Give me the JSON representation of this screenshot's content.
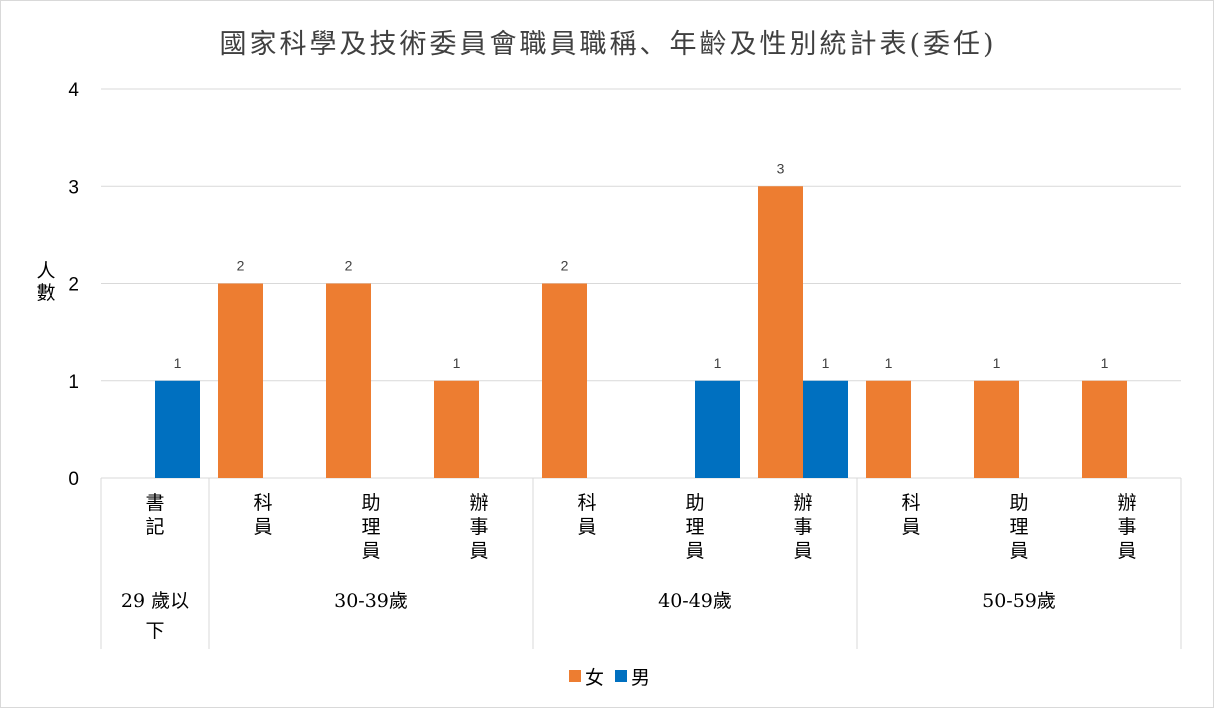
{
  "chart_data": {
    "type": "bar",
    "title": "國家科學及技術委員會職員職稱、年齡及性別統計表(委任)",
    "ylabel": "人數",
    "ylim": [
      0,
      4
    ],
    "yticks": [
      "0",
      "1",
      "2",
      "3",
      "4"
    ],
    "grid": true,
    "legend_position": "bottom",
    "categories": [
      "書記",
      "科員",
      "助理員",
      "辦事員",
      "科員",
      "助理員",
      "辦事員",
      "科員",
      "助理員",
      "辦事員"
    ],
    "groups": [
      {
        "label": "29 歲以下",
        "span": 1
      },
      {
        "label": "30-39歲",
        "span": 3
      },
      {
        "label": "40-49歲",
        "span": 3
      },
      {
        "label": "50-59歲",
        "span": 3
      }
    ],
    "series": [
      {
        "name": "女",
        "color": "#ED7D31",
        "values": [
          null,
          2,
          2,
          1,
          2,
          null,
          3,
          1,
          1,
          1
        ]
      },
      {
        "name": "男",
        "color": "#0070C0",
        "values": [
          1,
          null,
          null,
          null,
          null,
          1,
          1,
          null,
          null,
          null
        ]
      }
    ]
  }
}
